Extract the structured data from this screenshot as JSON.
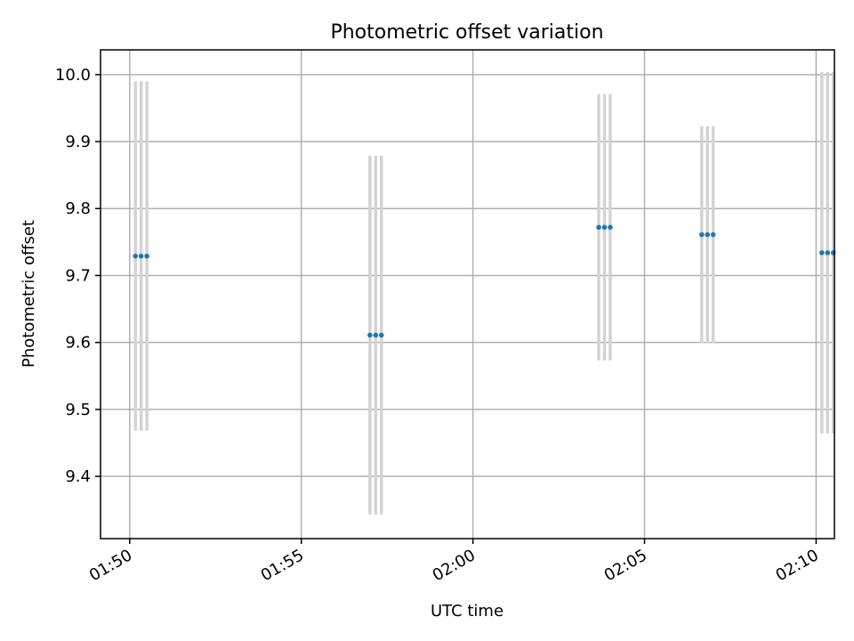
{
  "chart_data": {
    "type": "scatter",
    "title": "Photometric offset variation",
    "xlabel": "UTC time",
    "ylabel": "Photometric offset",
    "x_ticks": [
      "01:50",
      "01:55",
      "02:00",
      "02:05",
      "02:10"
    ],
    "y_ticks": [
      "9.4",
      "9.5",
      "9.6",
      "9.7",
      "9.8",
      "9.9",
      "10.0"
    ],
    "xlim": [
      "01:49:09",
      "02:10:32"
    ],
    "ylim": [
      9.307,
      10.037
    ],
    "grid": true,
    "colors": {
      "points": "#1f77b4",
      "errorbars": "#d3d3d3",
      "grid": "#b0b0b0"
    },
    "points": [
      {
        "time": "01:50:10",
        "y": 9.729,
        "err": 0.261
      },
      {
        "time": "01:50:20",
        "y": 9.729,
        "err": 0.261
      },
      {
        "time": "01:50:30",
        "y": 9.729,
        "err": 0.261
      },
      {
        "time": "01:57:00",
        "y": 9.611,
        "err": 0.268
      },
      {
        "time": "01:57:10",
        "y": 9.611,
        "err": 0.268
      },
      {
        "time": "01:57:20",
        "y": 9.611,
        "err": 0.268
      },
      {
        "time": "02:03:40",
        "y": 9.772,
        "err": 0.199
      },
      {
        "time": "02:03:50",
        "y": 9.772,
        "err": 0.199
      },
      {
        "time": "02:04:00",
        "y": 9.772,
        "err": 0.199
      },
      {
        "time": "02:06:40",
        "y": 9.761,
        "err": 0.162
      },
      {
        "time": "02:06:50",
        "y": 9.761,
        "err": 0.162
      },
      {
        "time": "02:07:00",
        "y": 9.761,
        "err": 0.162
      },
      {
        "time": "02:10:10",
        "y": 9.734,
        "err": 0.27
      },
      {
        "time": "02:10:20",
        "y": 9.734,
        "err": 0.27
      },
      {
        "time": "02:10:30",
        "y": 9.734,
        "err": 0.27
      }
    ]
  }
}
